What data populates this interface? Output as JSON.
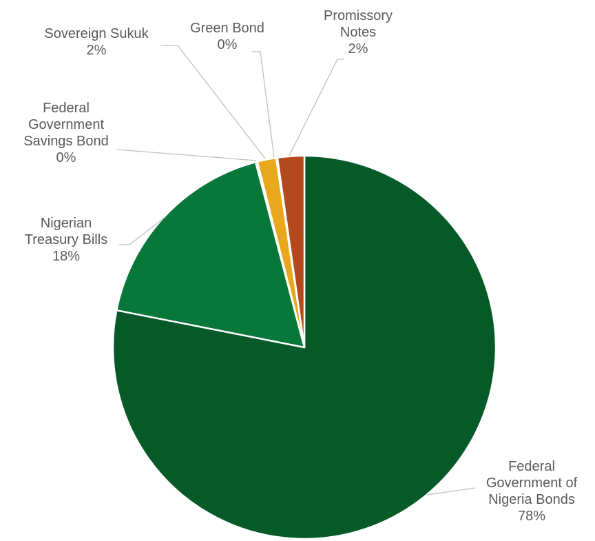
{
  "chart_data": {
    "type": "pie",
    "title": "",
    "legend": "none",
    "slices": [
      {
        "name_lines": [
          "Federal",
          "Government of",
          "Nigeria Bonds"
        ],
        "pct_label": "78%",
        "value": 78.1,
        "color": "#055a28"
      },
      {
        "name_lines": [
          "Nigerian",
          "Treasury Bills"
        ],
        "pct_label": "18%",
        "value": 17.8,
        "color": "#08773a"
      },
      {
        "name_lines": [
          "Federal",
          "Government",
          "Savings Bond"
        ],
        "pct_label": "0%",
        "value": 0.15,
        "color": "#0d8a44"
      },
      {
        "name_lines": [
          "Sovereign Sukuk"
        ],
        "pct_label": "2%",
        "value": 1.6,
        "color": "#e8a71c"
      },
      {
        "name_lines": [
          "Green Bond"
        ],
        "pct_label": "0%",
        "value": 0.1,
        "color": "#d7a01c"
      },
      {
        "name_lines": [
          "Promissory",
          "Notes"
        ],
        "pct_label": "2%",
        "value": 2.25,
        "color": "#b34a1e"
      }
    ]
  }
}
